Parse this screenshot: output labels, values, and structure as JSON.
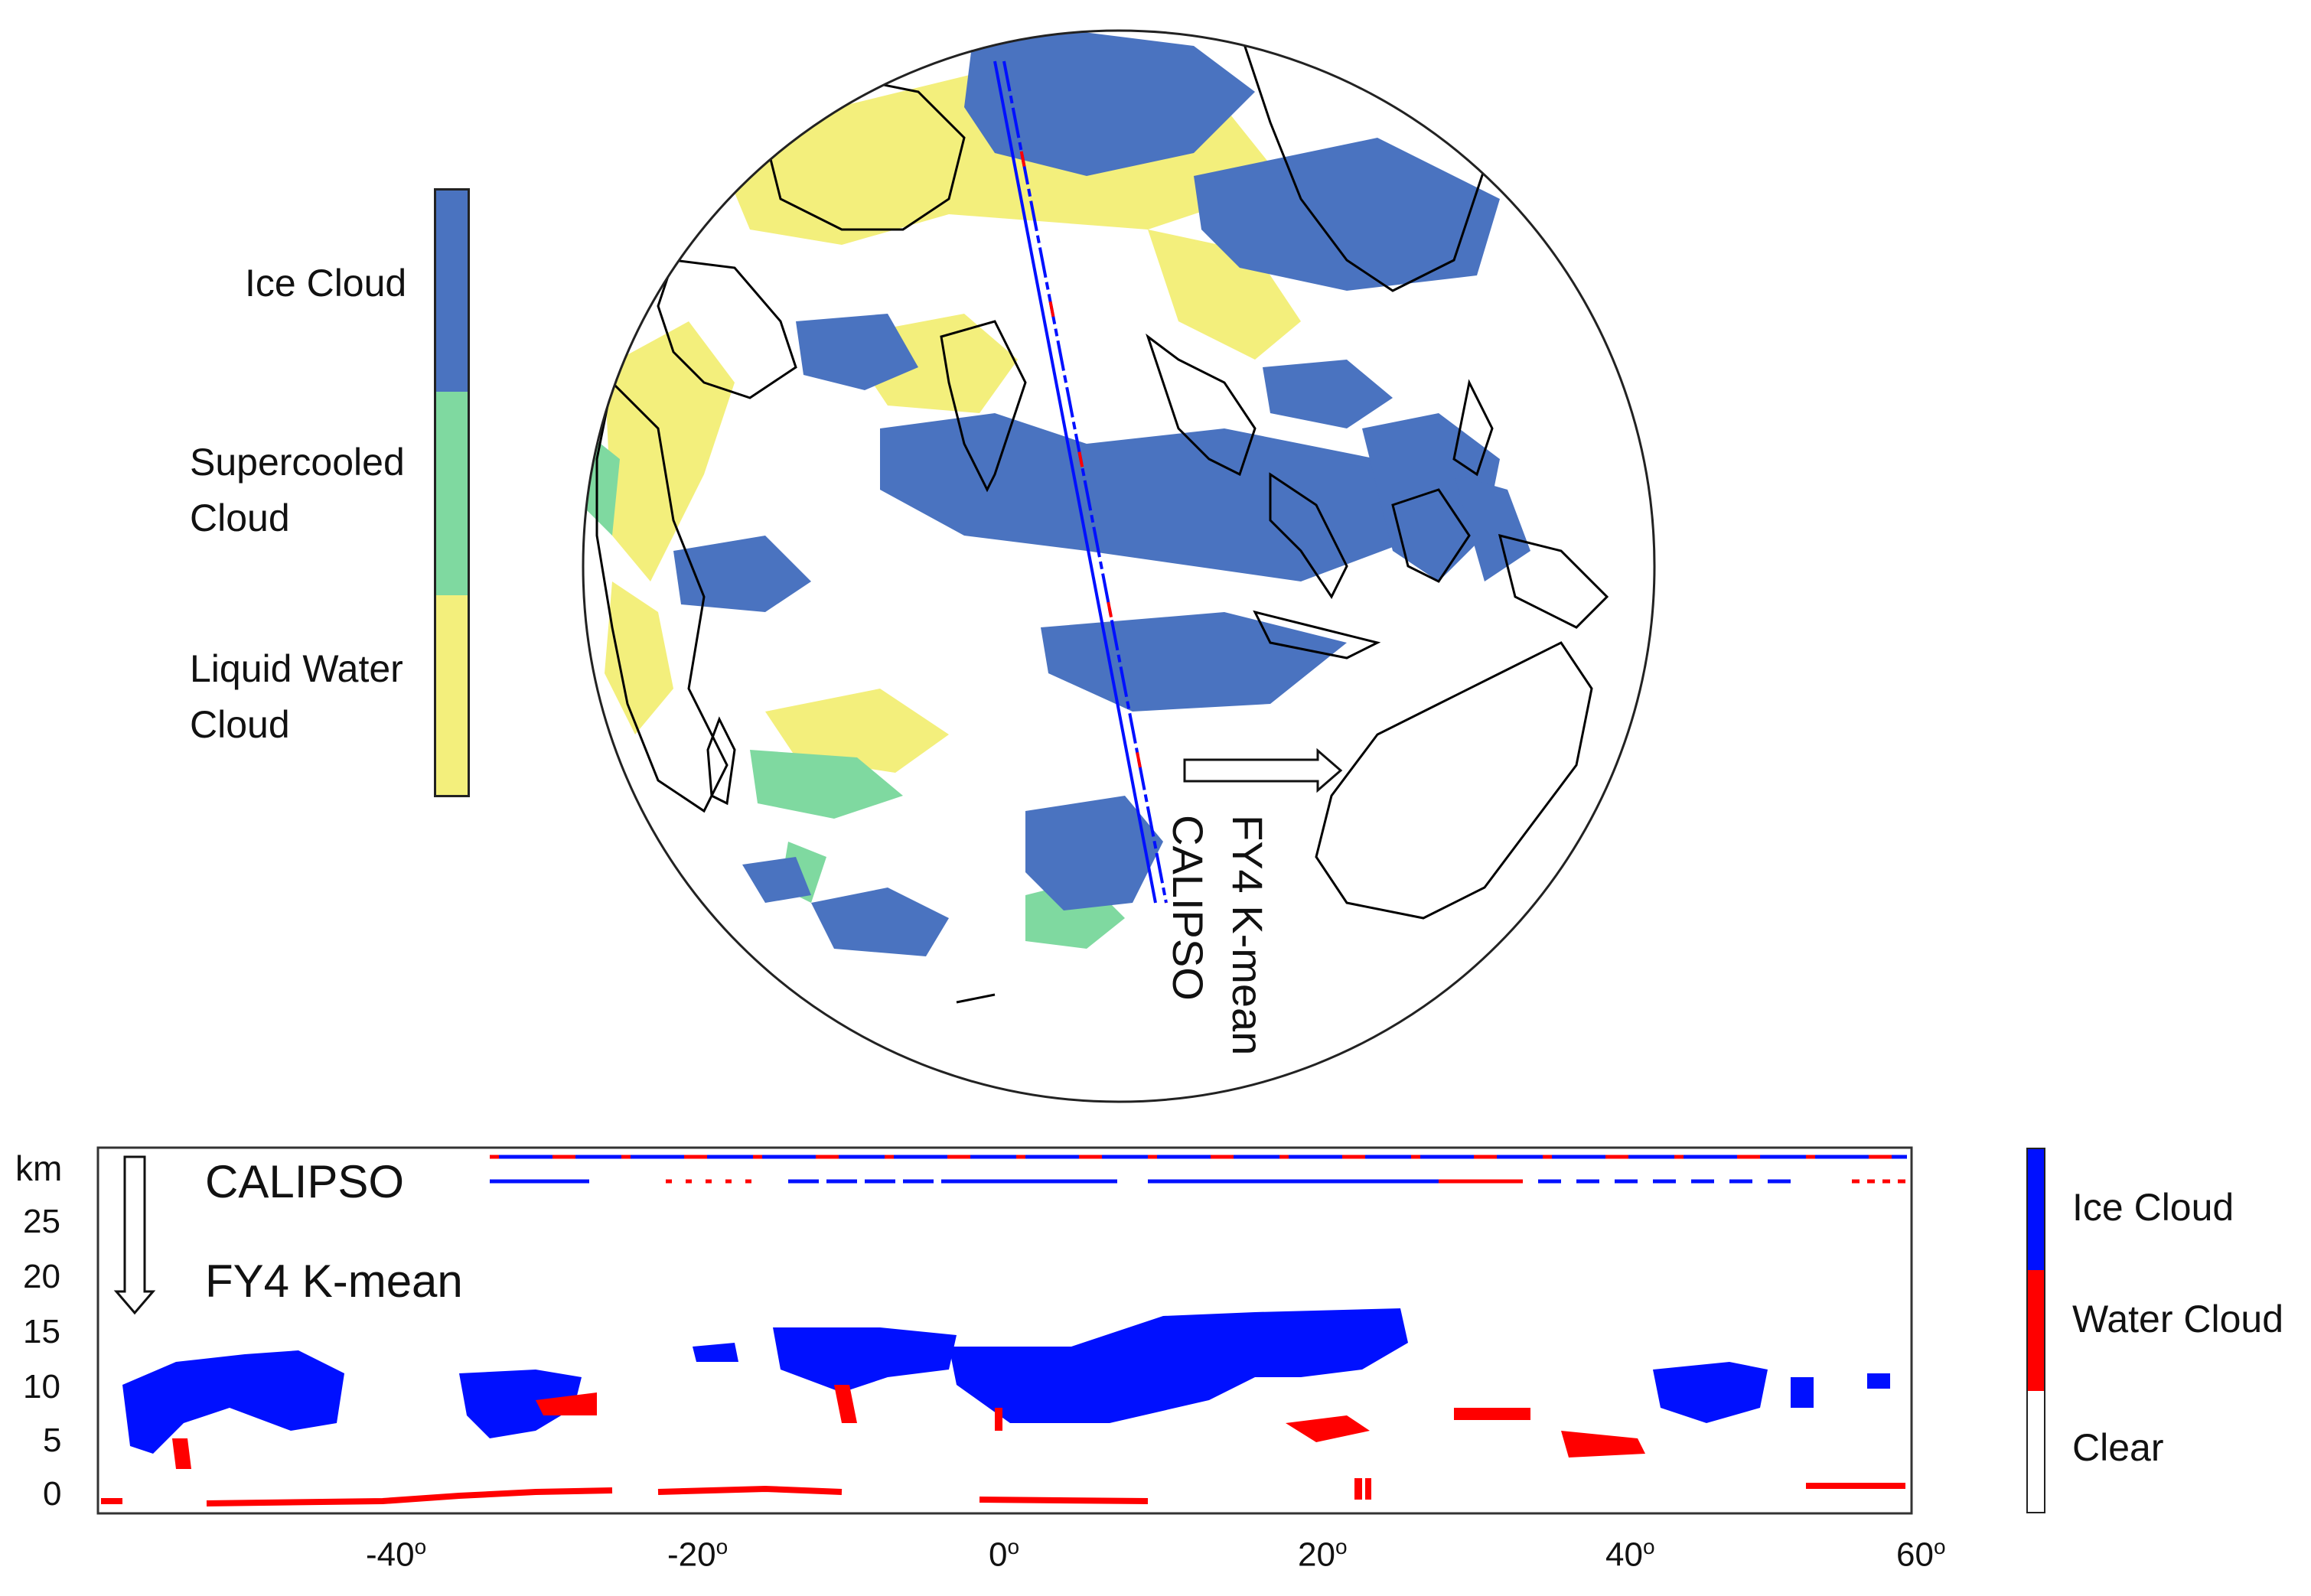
{
  "colors": {
    "ice_cloud_globe": "#4a73c0",
    "supercooled_cloud": "#7fd9a0",
    "liquid_water_cloud": "#f3ef7c",
    "ice_cloud_profile": "#0010ff",
    "water_cloud_profile": "#ff0000",
    "clear": "#ffffff"
  },
  "globe_legend": {
    "items": [
      {
        "label": "Ice Cloud",
        "color": "#4a73c0"
      },
      {
        "label": "Supercooled\nCloud",
        "color": "#7fd9a0"
      },
      {
        "label": "Liquid Water\nCloud",
        "color": "#f3ef7c"
      }
    ]
  },
  "globe": {
    "track_labels": {
      "calipso": "CALIPSO",
      "fy4": "FY4 K-mean"
    }
  },
  "profile": {
    "y_unit": "km",
    "y_ticks": [
      "25",
      "20",
      "15",
      "10",
      "5",
      "0"
    ],
    "x_ticks": [
      "-40",
      "-20",
      "0",
      "20",
      "40",
      "60"
    ],
    "x_tick_suffix": "o",
    "track_labels": {
      "calipso": "CALIPSO",
      "fy4": "FY4 K-mean"
    }
  },
  "profile_legend": {
    "items": [
      {
        "label": "Ice Cloud",
        "color": "#0010ff"
      },
      {
        "label": "Water Cloud",
        "color": "#ff0000"
      },
      {
        "label": "Clear",
        "color": "#ffffff"
      }
    ]
  }
}
